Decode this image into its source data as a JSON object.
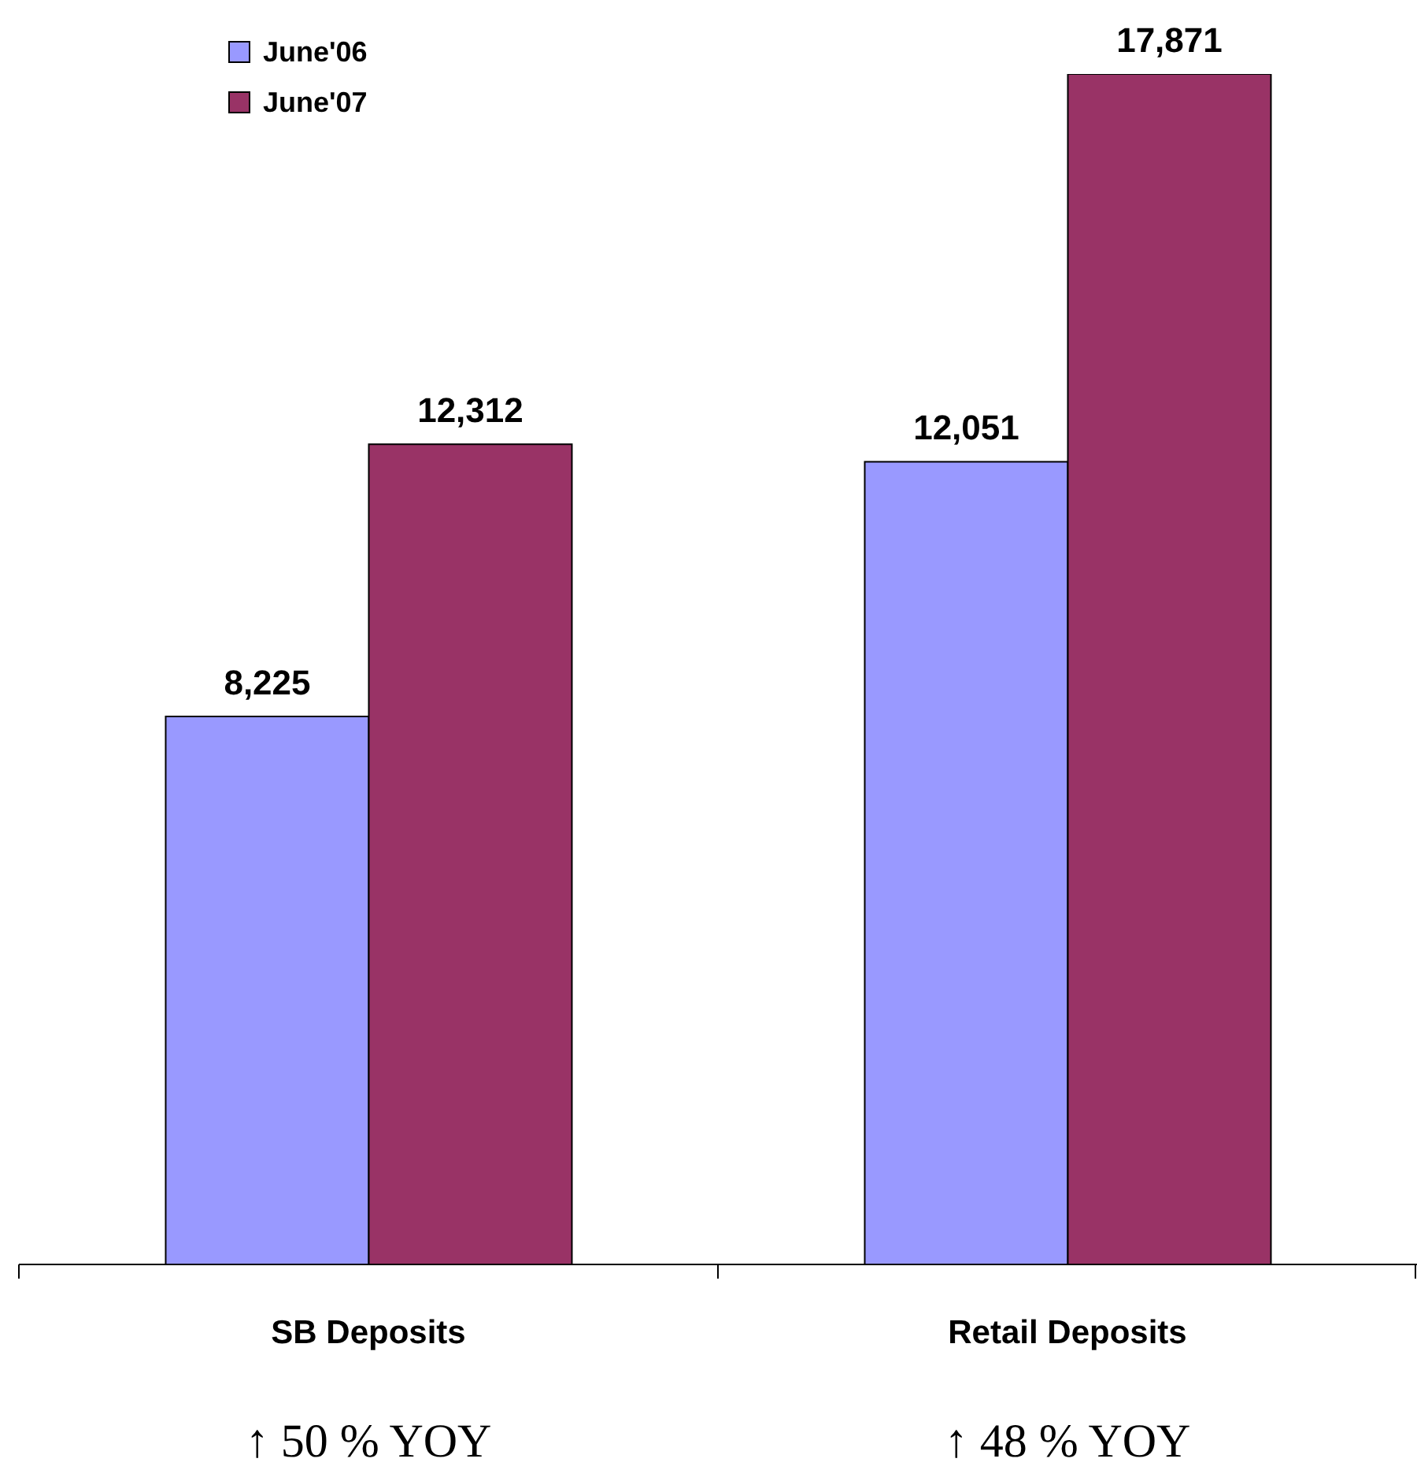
{
  "chart_data": {
    "type": "bar",
    "categories": [
      "SB Deposits",
      "Retail Deposits"
    ],
    "series": [
      {
        "name": "June'06",
        "color": "#9999ff",
        "values": [
          8225,
          12051
        ],
        "value_labels": [
          "8,225",
          "12,051"
        ]
      },
      {
        "name": "June'07",
        "color": "#993366",
        "values": [
          12312,
          17871
        ],
        "value_labels": [
          "12,312",
          "17,871"
        ]
      }
    ],
    "legend": "top left",
    "grid": false,
    "annotations": [
      "↑ 50 % YOY",
      "↑ 48 % YOY"
    ]
  }
}
